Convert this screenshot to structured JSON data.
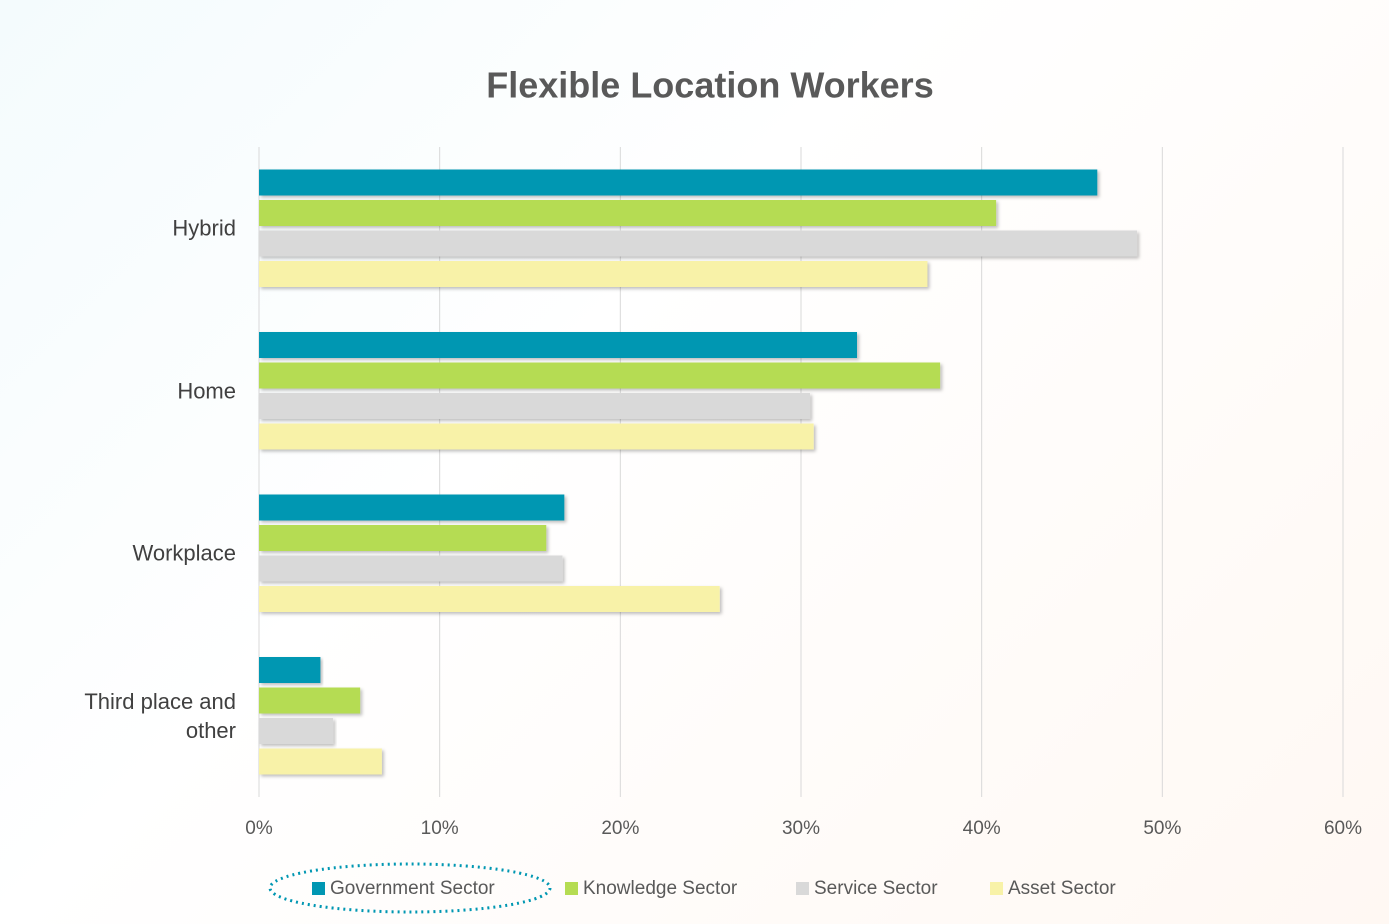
{
  "chart_data": {
    "type": "hbar",
    "title": "Flexible Location Workers",
    "categories": [
      "Hybrid",
      "Home",
      "Workplace",
      "Third place and other"
    ],
    "series": [
      {
        "name": "Government Sector",
        "color": "#0097b2",
        "values": [
          46.4,
          33.1,
          16.9,
          3.4
        ]
      },
      {
        "name": "Knowledge Sector",
        "color": "#b5dc52",
        "values": [
          40.8,
          37.7,
          15.9,
          5.6
        ]
      },
      {
        "name": "Service Sector",
        "color": "#d9d9d9",
        "values": [
          48.6,
          30.5,
          16.8,
          4.1
        ]
      },
      {
        "name": "Asset Sector",
        "color": "#f8f2a8",
        "values": [
          37.0,
          30.7,
          25.5,
          6.8
        ]
      }
    ],
    "xlim": [
      0,
      60
    ],
    "xticks": [
      {
        "value": 0,
        "label": "0%"
      },
      {
        "value": 10,
        "label": "10%"
      },
      {
        "value": 20,
        "label": "20%"
      },
      {
        "value": 30,
        "label": "30%"
      },
      {
        "value": 40,
        "label": "40%"
      },
      {
        "value": 50,
        "label": "50%"
      },
      {
        "value": 60,
        "label": "60%"
      }
    ],
    "grid": true,
    "legend": "bottom"
  }
}
